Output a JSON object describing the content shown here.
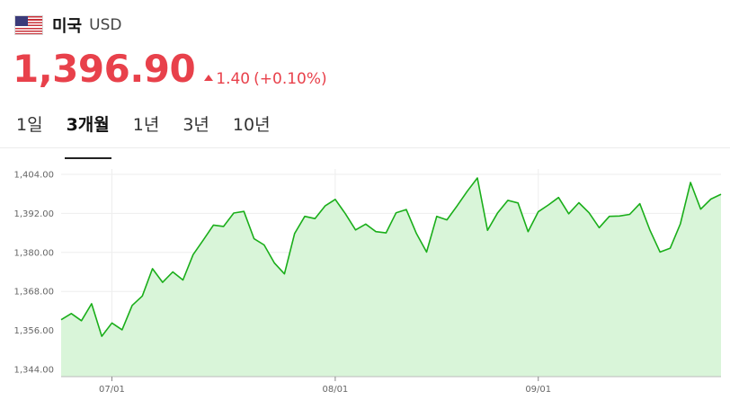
{
  "header": {
    "flag": "us-flag-icon",
    "country": "미국",
    "currency": "USD"
  },
  "quote": {
    "price": "1,396.90",
    "change": "1.40",
    "change_pct": "(+0.10%)",
    "direction": "up",
    "color": "#e8414b"
  },
  "tabs": [
    {
      "label": "1일",
      "active": false
    },
    {
      "label": "3개월",
      "active": true
    },
    {
      "label": "1년",
      "active": false
    },
    {
      "label": "3년",
      "active": false
    },
    {
      "label": "10년",
      "active": false
    }
  ],
  "chart_data": {
    "type": "area",
    "y_ticks": [
      1404,
      1392,
      1380,
      1368,
      1356,
      1344
    ],
    "y_tick_labels": [
      "1,404.00",
      "1,392.00",
      "1,380.00",
      "1,368.00",
      "1,356.00",
      "1,344.00"
    ],
    "ylim": [
      1344,
      1404
    ],
    "x_ticks": [
      {
        "index": 5,
        "label": "07/01"
      },
      {
        "index": 27,
        "label": "08/01"
      },
      {
        "index": 47,
        "label": "09/01"
      }
    ],
    "grid": true,
    "line_color": "#1aae1a",
    "fill_color": "#d9f5d9",
    "values": [
      1359.3,
      1361.2,
      1359.0,
      1364.2,
      1354.2,
      1358.3,
      1356.2,
      1363.7,
      1366.6,
      1375.0,
      1370.8,
      1374.0,
      1371.5,
      1379.3,
      1383.8,
      1388.4,
      1388.0,
      1392.1,
      1392.6,
      1384.2,
      1382.3,
      1376.8,
      1373.4,
      1385.8,
      1391.1,
      1390.4,
      1394.3,
      1396.3,
      1391.9,
      1386.9,
      1388.7,
      1386.4,
      1386.0,
      1392.2,
      1393.2,
      1385.8,
      1380.1,
      1391.1,
      1390.0,
      1394.3,
      1398.8,
      1402.9,
      1386.8,
      1392.2,
      1396.0,
      1395.2,
      1386.4,
      1392.5,
      1394.6,
      1396.9,
      1391.9,
      1395.3,
      1392.2,
      1387.6,
      1391.1,
      1391.2,
      1391.7,
      1395.0,
      1386.8,
      1380.1,
      1381.3,
      1388.8,
      1401.5,
      1393.3,
      1396.4,
      1397.9
    ]
  }
}
